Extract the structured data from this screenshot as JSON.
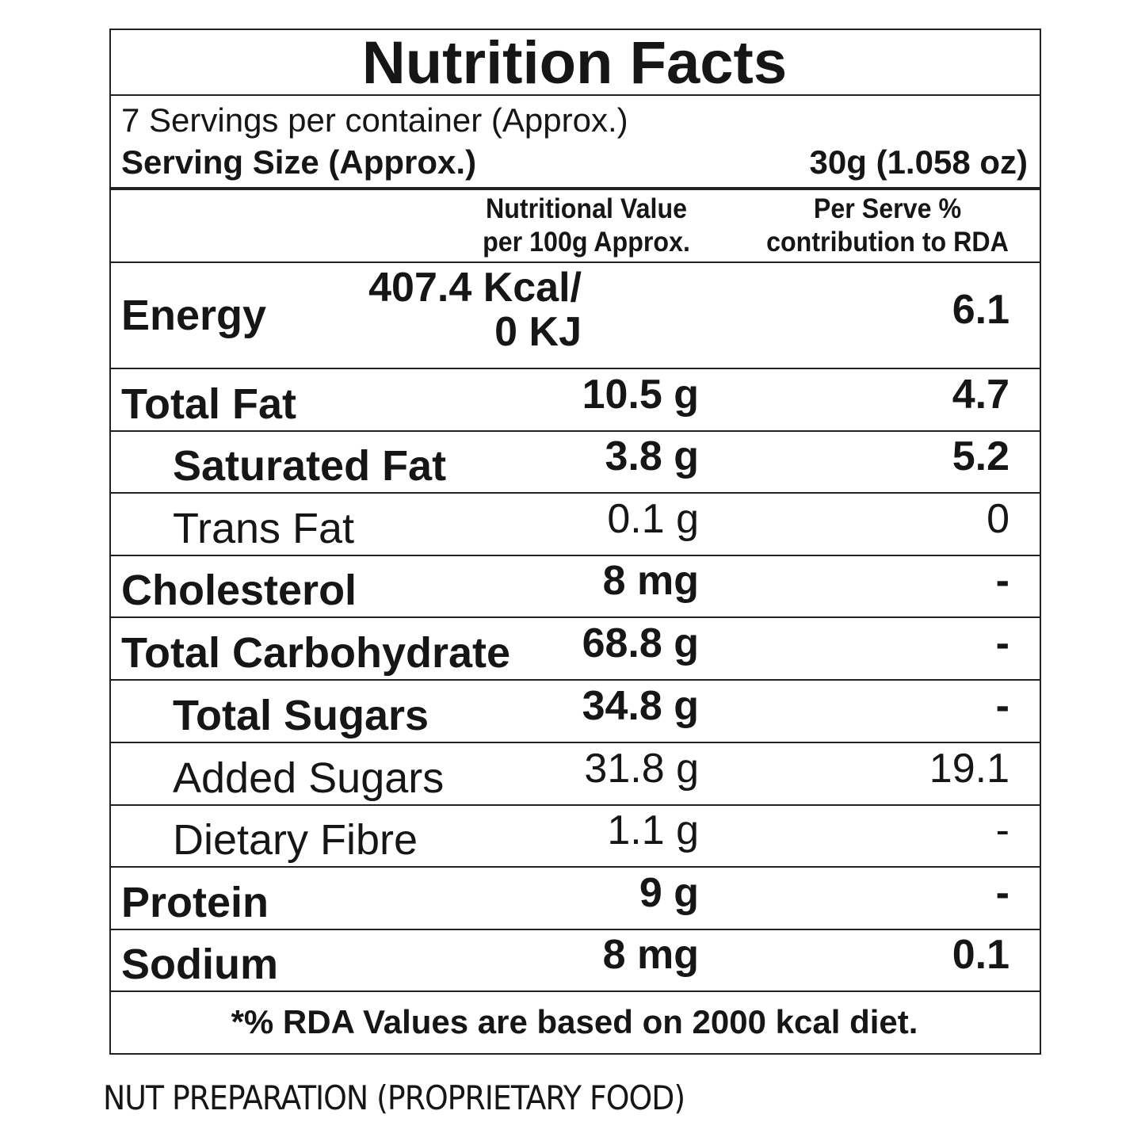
{
  "title": "Nutrition Facts",
  "servings": "7 Servings per container (Approx.)",
  "serving_size": {
    "label": "Serving Size (Approx.)",
    "value": "30g (1.058 oz)"
  },
  "columns": {
    "value_header": [
      "Nutritional Value",
      "per 100g Approx."
    ],
    "rda_header": [
      "Per Serve %",
      "contribution to RDA"
    ]
  },
  "rows": [
    {
      "name": "Energy",
      "value": [
        "407.4 Kcal/",
        "0 KJ"
      ],
      "rda": "6.1"
    },
    {
      "name": "Total Fat",
      "value": "10.5 g",
      "rda": "4.7"
    },
    {
      "name": "Saturated Fat",
      "value": "3.8 g",
      "rda": "5.2"
    },
    {
      "name": "Trans Fat",
      "value": "0.1 g",
      "rda": "0"
    },
    {
      "name": "Cholesterol",
      "value": "8 mg",
      "rda": "-"
    },
    {
      "name": "Total Carbohydrate",
      "value": "68.8 g",
      "rda": "-"
    },
    {
      "name": "Total Sugars",
      "value": "34.8 g",
      "rda": "-"
    },
    {
      "name": "Added Sugars",
      "value": "31.8 g",
      "rda": "19.1"
    },
    {
      "name": "Dietary Fibre",
      "value": "1.1 g",
      "rda": "-"
    },
    {
      "name": "Protein",
      "value": "9 g",
      "rda": "-"
    },
    {
      "name": "Sodium",
      "value": "8 mg",
      "rda": "0.1"
    }
  ],
  "footnote": "*% RDA Values are based on 2000 kcal diet.",
  "product_type": "NUT PREPARATION (PROPRIETARY FOOD)"
}
